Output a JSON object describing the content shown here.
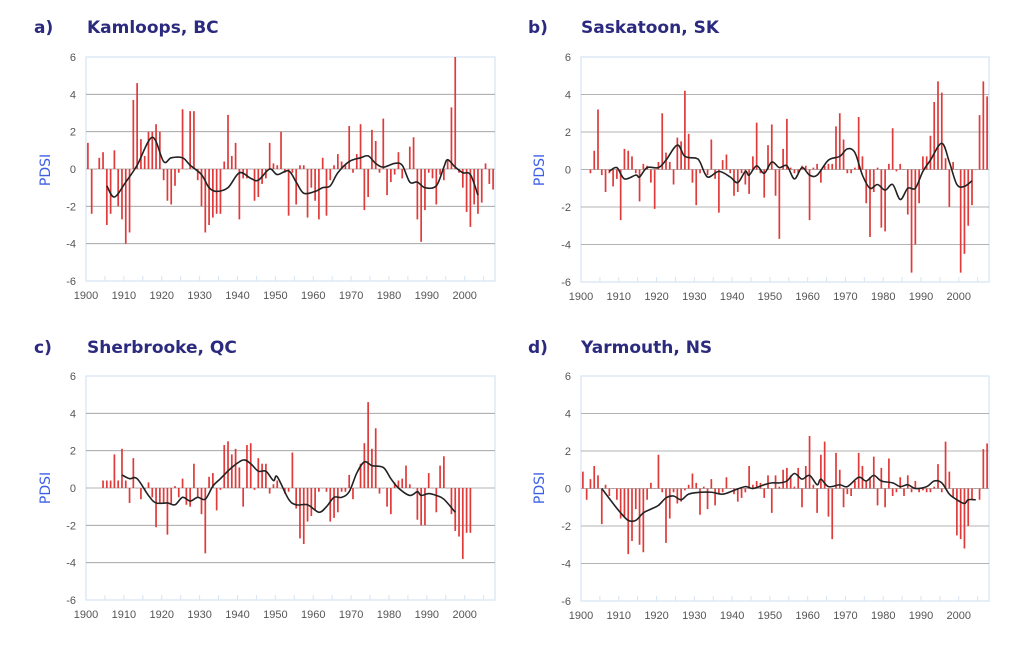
{
  "chart_data": [
    {
      "type": "bar",
      "panel_letter": "a)",
      "title": "Kamloops, BC",
      "ylabel": "PDSI",
      "xlabel": "",
      "xlim": [
        1900,
        2008
      ],
      "ylim": [
        -6,
        6
      ],
      "yticks": [
        "6",
        "4",
        "2",
        "0",
        "-2",
        "-4",
        "-6"
      ],
      "xticks": [
        "1900",
        "1910",
        "1920",
        "1930",
        "1940",
        "1950",
        "1960",
        "1970",
        "1980",
        "1990",
        "2000"
      ],
      "grid": true,
      "bar_color": "#e03a3a",
      "line_color": "#222222",
      "start_year": 1900,
      "values": [
        1.4,
        -2.4,
        0,
        0.6,
        0.9,
        -3.0,
        -2.4,
        1.0,
        -2.0,
        -2.7,
        -4.0,
        -3.4,
        3.7,
        4.6,
        1.6,
        0.7,
        2.0,
        2.0,
        2.4,
        2.0,
        -0.6,
        -1.7,
        -1.9,
        -0.9,
        -0.2,
        3.2,
        0,
        3.1,
        3.1,
        -0.6,
        -2.0,
        -3.4,
        -3.0,
        -2.6,
        -2.4,
        -2.4,
        0.4,
        2.9,
        0.7,
        1.4,
        -2.7,
        -0.5,
        -0.5,
        0,
        -1.7,
        -1.5,
        -0.8,
        -0.5,
        1.4,
        0.3,
        0.2,
        2.0,
        -0.2,
        -2.5,
        -0.2,
        -1.9,
        0.2,
        0.2,
        -2.6,
        -1.0,
        -1.7,
        -2.7,
        0.6,
        -2.5,
        -0.6,
        0.2,
        0.8,
        0.4,
        0.2,
        2.3,
        -0.2,
        0.8,
        2.4,
        -2.2,
        -1.5,
        2.1,
        1.5,
        -0.2,
        2.7,
        -1.4,
        -0.7,
        -0.3,
        0.9,
        -0.5,
        0,
        1.2,
        1.7,
        -2.7,
        -3.9,
        -2.2,
        -0.2,
        -0.5,
        -1.9,
        -0.3,
        -0.6,
        0.5,
        3.3,
        6.0,
        -0.2,
        -1.0,
        -2.3,
        -3.1,
        -1.9,
        -2.4,
        -1.8,
        0.3,
        -0.8,
        -1.1
      ],
      "smoothed": [
        [
          1905,
          -0.9
        ],
        [
          1907,
          -1.5
        ],
        [
          1910,
          -0.7
        ],
        [
          1913,
          0.2
        ],
        [
          1917,
          1.7
        ],
        [
          1920,
          0.4
        ],
        [
          1922,
          0.6
        ],
        [
          1925,
          0.6
        ],
        [
          1927,
          0.2
        ],
        [
          1930,
          -0.3
        ],
        [
          1932,
          -1.0
        ],
        [
          1934,
          -1.2
        ],
        [
          1937,
          -1.0
        ],
        [
          1940,
          -0.2
        ],
        [
          1943,
          -0.5
        ],
        [
          1945,
          -0.6
        ],
        [
          1948,
          0
        ],
        [
          1950,
          -0.3
        ],
        [
          1953,
          -0.1
        ],
        [
          1955,
          -0.7
        ],
        [
          1957,
          -1.3
        ],
        [
          1960,
          -1.2
        ],
        [
          1962,
          -1.0
        ],
        [
          1964,
          -0.9
        ],
        [
          1966,
          -0.2
        ],
        [
          1969,
          0.4
        ],
        [
          1972,
          0.6
        ],
        [
          1974,
          0.7
        ],
        [
          1976,
          0.3
        ],
        [
          1978,
          0.1
        ],
        [
          1981,
          0.3
        ],
        [
          1983,
          0.2
        ],
        [
          1985,
          -0.7
        ],
        [
          1987,
          -0.7
        ],
        [
          1989,
          -1.0
        ],
        [
          1992,
          -0.9
        ],
        [
          1994,
          0.1
        ],
        [
          1995,
          0.5
        ],
        [
          1997,
          0.1
        ],
        [
          1999,
          -0.2
        ],
        [
          2001,
          -0.3
        ],
        [
          2003,
          -1.4
        ]
      ]
    },
    {
      "type": "bar",
      "panel_letter": "b)",
      "title": "Saskatoon, SK",
      "ylabel": "PDSI",
      "xlabel": "",
      "xlim": [
        1900,
        2008
      ],
      "ylim": [
        -6,
        6
      ],
      "yticks": [
        "6",
        "4",
        "2",
        "0",
        "-2",
        "-4",
        "-6"
      ],
      "xticks": [
        "1900",
        "1910",
        "1920",
        "1930",
        "1940",
        "1950",
        "1960",
        "1970",
        "1980",
        "1990",
        "2000"
      ],
      "grid": true,
      "bar_color": "#e03a3a",
      "line_color": "#222222",
      "start_year": 1902,
      "values": [
        -0.2,
        1.0,
        3.2,
        -0.3,
        -1.2,
        -0.2,
        -0.9,
        -0.5,
        -2.7,
        1.1,
        1.0,
        0.7,
        -0.2,
        -1.7,
        0.3,
        0.2,
        -0.7,
        -2.1,
        0.4,
        3.0,
        0.9,
        0.4,
        -0.8,
        1.7,
        1.5,
        4.2,
        1.9,
        -0.7,
        -1.9,
        -0.2,
        0,
        -0.3,
        1.6,
        -0.5,
        -2.3,
        0.5,
        0.8,
        -0.2,
        -1.4,
        -1.2,
        -0.2,
        -0.8,
        -1.3,
        0.7,
        2.5,
        -0.2,
        -1.5,
        1.3,
        2.4,
        -1.4,
        -3.7,
        1.1,
        2.7,
        0.1,
        -0.2,
        -0.2,
        0.2,
        0.2,
        -2.7,
        0.1,
        0.3,
        -0.7,
        0.2,
        0.3,
        0.3,
        2.3,
        3.0,
        1.6,
        -0.2,
        -0.2,
        0.1,
        2.8,
        0.7,
        -1.8,
        -3.6,
        -1.2,
        0.1,
        -3.1,
        -3.3,
        0.3,
        2.2,
        -0.1,
        0.3,
        0,
        -2.4,
        -5.5,
        -4.0,
        -1.8,
        0.7,
        0.7,
        1.8,
        3.6,
        4.7,
        4.1,
        0.6,
        -2.0,
        0.4,
        0,
        -5.5,
        -4.5,
        -3.0,
        -1.9,
        0,
        2.9,
        4.7,
        3.9
      ],
      "smoothed": [
        [
          1907,
          -0.1
        ],
        [
          1909,
          0.1
        ],
        [
          1911,
          -0.5
        ],
        [
          1914,
          -0.3
        ],
        [
          1915,
          -0.4
        ],
        [
          1917,
          0.1
        ],
        [
          1920,
          0.1
        ],
        [
          1922,
          0.5
        ],
        [
          1925,
          1.3
        ],
        [
          1927,
          0.7
        ],
        [
          1930,
          0.6
        ],
        [
          1931,
          0.4
        ],
        [
          1933,
          -0.4
        ],
        [
          1936,
          -0.1
        ],
        [
          1939,
          -0.4
        ],
        [
          1941,
          -0.7
        ],
        [
          1943,
          -0.1
        ],
        [
          1944,
          -0.3
        ],
        [
          1946,
          0.2
        ],
        [
          1948,
          -0.2
        ],
        [
          1950,
          0.4
        ],
        [
          1952,
          0.1
        ],
        [
          1954,
          0.2
        ],
        [
          1956,
          -0.5
        ],
        [
          1958,
          0.1
        ],
        [
          1960,
          -0.3
        ],
        [
          1962,
          -0.3
        ],
        [
          1965,
          0.5
        ],
        [
          1968,
          0.7
        ],
        [
          1970,
          1.1
        ],
        [
          1972,
          0.9
        ],
        [
          1974,
          -0.3
        ],
        [
          1976,
          -1.0
        ],
        [
          1978,
          -0.8
        ],
        [
          1980,
          -1.1
        ],
        [
          1982,
          -0.8
        ],
        [
          1984,
          -1.6
        ],
        [
          1986,
          -1.0
        ],
        [
          1988,
          -1.0
        ],
        [
          1990,
          -0.1
        ],
        [
          1992,
          0.5
        ],
        [
          1995,
          1.4
        ],
        [
          1997,
          0.4
        ],
        [
          1999,
          -0.8
        ],
        [
          2001,
          -0.9
        ],
        [
          2003,
          -0.6
        ]
      ]
    },
    {
      "type": "bar",
      "panel_letter": "c)",
      "title": "Sherbrooke, QC",
      "ylabel": "PDSI",
      "xlabel": "",
      "xlim": [
        1900,
        2008
      ],
      "ylim": [
        -6,
        6
      ],
      "yticks": [
        "6",
        "4",
        "2",
        "0",
        "-2",
        "-4",
        "-6"
      ],
      "xticks": [
        "1900",
        "1910",
        "1920",
        "1930",
        "1940",
        "1950",
        "1960",
        "1970",
        "1980",
        "1990",
        "2000"
      ],
      "grid": true,
      "bar_color": "#e03a3a",
      "line_color": "#222222",
      "start_year": 1904,
      "values": [
        0.4,
        0.4,
        0.4,
        1.8,
        0.4,
        2.1,
        0.4,
        -0.8,
        1.6,
        0,
        -0.6,
        -0.1,
        0.3,
        -0.5,
        -2.1,
        -0.8,
        -0.8,
        -2.5,
        -0.9,
        0.1,
        -0.5,
        0.5,
        -0.9,
        -1.0,
        1.3,
        -0.5,
        -1.4,
        -3.5,
        0.6,
        0.8,
        -1.2,
        -0.1,
        2.3,
        2.5,
        1.8,
        2.1,
        1.1,
        -1.0,
        2.3,
        2.4,
        -0.1,
        1.6,
        1.3,
        1.3,
        -0.3,
        0.2,
        0.4,
        0,
        -0.3,
        -0.2,
        1.9,
        -1.1,
        -2.7,
        -3.0,
        -1.8,
        -1.5,
        -1.2,
        -0.2,
        0,
        -0.2,
        -1.8,
        -1.6,
        -1.3,
        -0.2,
        -0.2,
        0.7,
        -0.6,
        0,
        1.3,
        2.4,
        4.6,
        2.1,
        3.2,
        -0.3,
        0,
        -1.0,
        -1.4,
        0.3,
        0.4,
        0.5,
        1.2,
        0.2,
        0,
        -1.7,
        -2.0,
        -2.0,
        0.8,
        0,
        -1.3,
        1.2,
        1.7,
        0,
        -1.4,
        -2.3,
        -2.6,
        -3.8,
        -2.4,
        -2.4
      ],
      "smoothed": [
        [
          1909,
          0.7
        ],
        [
          1911,
          0.5
        ],
        [
          1913,
          0.5
        ],
        [
          1916,
          -0.4
        ],
        [
          1918,
          -0.8
        ],
        [
          1921,
          -0.8
        ],
        [
          1923,
          -0.9
        ],
        [
          1925,
          -0.5
        ],
        [
          1927,
          -0.7
        ],
        [
          1929,
          -0.5
        ],
        [
          1931,
          -0.6
        ],
        [
          1933,
          0.1
        ],
        [
          1935,
          0.5
        ],
        [
          1938,
          1.1
        ],
        [
          1941,
          1.5
        ],
        [
          1943,
          1.3
        ],
        [
          1945,
          0.9
        ],
        [
          1947,
          0.9
        ],
        [
          1949,
          0.4
        ],
        [
          1950,
          0.6
        ],
        [
          1953,
          -0.6
        ],
        [
          1955,
          -0.9
        ],
        [
          1958,
          -0.9
        ],
        [
          1961,
          -1.3
        ],
        [
          1963,
          -1.0
        ],
        [
          1965,
          -0.5
        ],
        [
          1967,
          -0.5
        ],
        [
          1969,
          -0.2
        ],
        [
          1971,
          0.8
        ],
        [
          1973,
          1.4
        ],
        [
          1975,
          1.2
        ],
        [
          1978,
          1.1
        ],
        [
          1980,
          0.5
        ],
        [
          1982,
          0
        ],
        [
          1985,
          -0.4
        ],
        [
          1987,
          -0.2
        ],
        [
          1988,
          -0.4
        ],
        [
          1990,
          -0.3
        ],
        [
          1992,
          -0.4
        ],
        [
          1994,
          -0.6
        ],
        [
          1997,
          -1.3
        ]
      ]
    },
    {
      "type": "bar",
      "panel_letter": "d)",
      "title": "Yarmouth, NS",
      "ylabel": "PDSI",
      "xlabel": "",
      "xlim": [
        1900,
        2008
      ],
      "ylim": [
        -6,
        6
      ],
      "yticks": [
        "6",
        "4",
        "2",
        "0",
        "-2",
        "-4",
        "-6"
      ],
      "xticks": [
        "1900",
        "1910",
        "1920",
        "1930",
        "1940",
        "1950",
        "1960",
        "1970",
        "1980",
        "1990",
        "2000"
      ],
      "grid": true,
      "bar_color": "#e03a3a",
      "line_color": "#222222",
      "start_year": 1900,
      "values": [
        0.9,
        -0.6,
        0.5,
        1.2,
        0.7,
        -1.9,
        0.2,
        -0.4,
        0,
        -0.6,
        -1.6,
        -1.5,
        -3.5,
        -2.8,
        -1.1,
        -3.0,
        -3.4,
        -0.6,
        0.3,
        0,
        1.8,
        -0.2,
        -2.9,
        -1.6,
        -0.2,
        -0.8,
        -0.7,
        -0.1,
        0.2,
        0.8,
        0.3,
        -1.4,
        0.1,
        -1.1,
        0.5,
        -0.9,
        -0.3,
        -0.2,
        0.6,
        0,
        -0.3,
        -0.7,
        -0.5,
        -0.2,
        1.2,
        0.2,
        0.4,
        0.3,
        -0.5,
        0.7,
        -1.3,
        0.7,
        0.1,
        1.0,
        1.1,
        0.7,
        0.1,
        1.1,
        -1.0,
        1.2,
        2.8,
        0.2,
        -1.3,
        1.8,
        2.5,
        -1.5,
        -2.7,
        1.9,
        1.0,
        -1.0,
        -0.3,
        -0.4,
        0.4,
        1.9,
        1.2,
        0.4,
        0.6,
        1.7,
        -0.9,
        1.1,
        -1.0,
        1.6,
        -0.4,
        -0.2,
        0.6,
        -0.4,
        0.7,
        -0.2,
        0.4,
        -0.2,
        -0.1,
        -0.2,
        -0.2,
        0.1,
        1.3,
        -0.2,
        2.5,
        0.9,
        -0.5,
        -2.5,
        -2.7,
        -3.2,
        -2.0,
        -0.6,
        0,
        -0.6,
        2.1,
        2.4
      ],
      "smoothed": [
        [
          1905,
          0
        ],
        [
          1908,
          -0.8
        ],
        [
          1910,
          -1.3
        ],
        [
          1912,
          -1.7
        ],
        [
          1914,
          -1.7
        ],
        [
          1916,
          -1.3
        ],
        [
          1918,
          -1.1
        ],
        [
          1920,
          -0.9
        ],
        [
          1922,
          -0.5
        ],
        [
          1924,
          -0.4
        ],
        [
          1926,
          -0.6
        ],
        [
          1928,
          -0.3
        ],
        [
          1931,
          -0.2
        ],
        [
          1934,
          -0.2
        ],
        [
          1937,
          -0.3
        ],
        [
          1940,
          -0.1
        ],
        [
          1943,
          0.1
        ],
        [
          1945,
          0
        ],
        [
          1948,
          0.2
        ],
        [
          1950,
          0.3
        ],
        [
          1952,
          0.3
        ],
        [
          1954,
          0.4
        ],
        [
          1956,
          0.8
        ],
        [
          1958,
          0.5
        ],
        [
          1960,
          0.7
        ],
        [
          1962,
          0.2
        ],
        [
          1963,
          0.5
        ],
        [
          1965,
          0.1
        ],
        [
          1968,
          0.2
        ],
        [
          1970,
          0.1
        ],
        [
          1973,
          0.6
        ],
        [
          1975,
          0.4
        ],
        [
          1977,
          0.7
        ],
        [
          1979,
          0.4
        ],
        [
          1982,
          0.3
        ],
        [
          1984,
          0.1
        ],
        [
          1986,
          0.2
        ],
        [
          1988,
          0
        ],
        [
          1991,
          0.1
        ],
        [
          1993,
          0.4
        ],
        [
          1995,
          0.3
        ],
        [
          1997,
          -0.3
        ],
        [
          1999,
          -0.6
        ],
        [
          2001,
          -0.8
        ],
        [
          2002,
          -0.6
        ],
        [
          2004,
          -0.6
        ]
      ]
    }
  ]
}
